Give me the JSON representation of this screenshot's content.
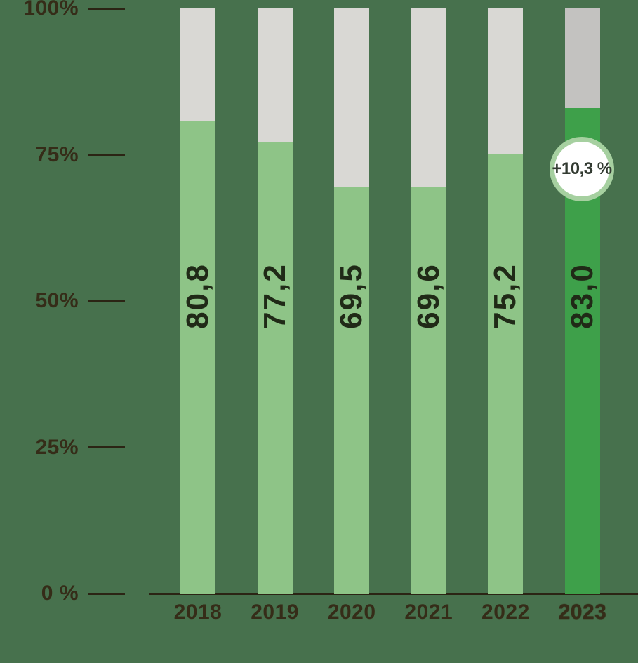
{
  "chart_data": {
    "type": "bar",
    "stacked": true,
    "percent_stacked": true,
    "title": "",
    "xlabel": "",
    "ylabel": "",
    "categories": [
      "2018",
      "2019",
      "2020",
      "2021",
      "2022",
      "2023"
    ],
    "series": [
      {
        "name": "green-share",
        "values": [
          80.8,
          77.2,
          69.5,
          69.6,
          75.2,
          83.0
        ]
      },
      {
        "name": "gray-remainder",
        "values": [
          19.2,
          22.8,
          30.5,
          30.4,
          24.8,
          17.0
        ]
      }
    ],
    "value_labels": [
      "80,8",
      "77,2",
      "69,5",
      "69,6",
      "75,2",
      "83,0"
    ],
    "ylim": [
      0,
      100
    ],
    "yticks": [
      {
        "label": "100%",
        "value": 100
      },
      {
        "label": "75%",
        "value": 75
      },
      {
        "label": "50%",
        "value": 50
      },
      {
        "label": "25%",
        "value": 25
      },
      {
        "label": "0 %",
        "value": 0
      }
    ],
    "grid": false,
    "legend": "none",
    "highlight_index": 5,
    "annotation": {
      "label": "+10,3 %",
      "attached_to": "2023"
    },
    "colors": {
      "background": "#47714d",
      "bar_green": "#8ec487",
      "bar_green_highlight": "#3ea04a",
      "bar_gray": "#d9d8d4",
      "bar_gray_highlight": "#c3c2c0",
      "axis_text": "#352c18",
      "axis_line": "#2b2414",
      "value_text": "#202a17",
      "badge_ring": "#a6d0a0",
      "badge_bg": "#ffffff",
      "badge_text": "#333b32"
    }
  }
}
